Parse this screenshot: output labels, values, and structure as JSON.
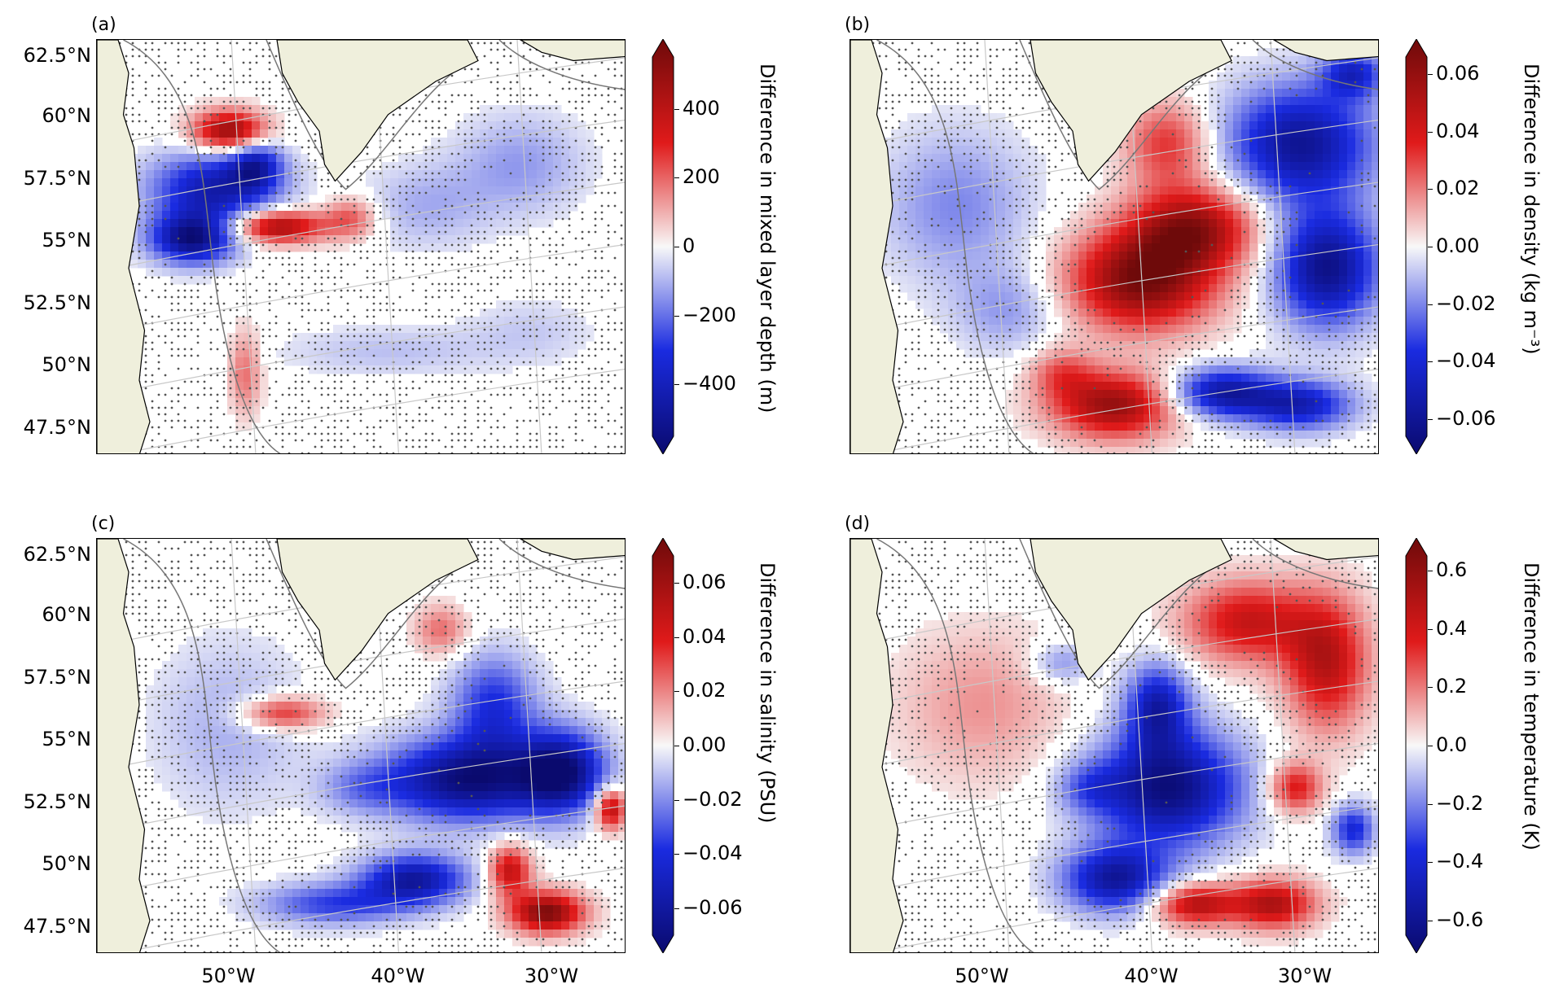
{
  "figure": {
    "lat_labels": [
      "62.5°N",
      "60°N",
      "57.5°N",
      "55°N",
      "52.5°N",
      "50°N",
      "47.5°N"
    ],
    "lon_labels": [
      "50°W",
      "40°W",
      "30°W"
    ],
    "colors": {
      "land": "#efefdc",
      "ocean": "#ffffff",
      "stipple": "#555555",
      "isobath": "#777777",
      "grid": "#c8c8c8",
      "coast": "#000000",
      "neg_max": "#0a0a6e",
      "neg_mid": "#1a2be0",
      "zero": "#f8f8f8",
      "pos_mid": "#e01a1a",
      "pos_max": "#6e0a0a"
    }
  },
  "panels": [
    {
      "id": "a",
      "label": "(a)",
      "colorbar": {
        "title": "Difference in mixed layer depth (m)",
        "ticks": [
          "400",
          "200",
          "0",
          "−200",
          "−400"
        ],
        "tick_values": [
          400,
          200,
          0,
          -200,
          -400
        ],
        "range": [
          -550,
          550
        ]
      },
      "show_lat": true,
      "show_lon": false
    },
    {
      "id": "b",
      "label": "(b)",
      "colorbar": {
        "title": "Difference in density (kg m⁻³)",
        "ticks": [
          "0.06",
          "0.04",
          "0.02",
          "0.00",
          "−0.02",
          "−0.04",
          "−0.06"
        ],
        "tick_values": [
          0.06,
          0.04,
          0.02,
          0.0,
          -0.02,
          -0.04,
          -0.06
        ],
        "range": [
          -0.066,
          0.066
        ]
      },
      "show_lat": false,
      "show_lon": false
    },
    {
      "id": "c",
      "label": "(c)",
      "colorbar": {
        "title": "Difference in salinity (PSU)",
        "ticks": [
          "0.06",
          "0.04",
          "0.02",
          "0.00",
          "−0.02",
          "−0.04",
          "−0.06"
        ],
        "tick_values": [
          0.06,
          0.04,
          0.02,
          0.0,
          -0.02,
          -0.04,
          -0.06
        ],
        "range": [
          -0.07,
          0.07
        ]
      },
      "show_lat": true,
      "show_lon": true
    },
    {
      "id": "d",
      "label": "(d)",
      "colorbar": {
        "title": "Difference in temperature (K)",
        "ticks": [
          "0.6",
          "0.4",
          "0.2",
          "0.0",
          "−0.2",
          "−0.4",
          "−0.6"
        ],
        "tick_values": [
          0.6,
          0.4,
          0.2,
          0.0,
          -0.2,
          -0.4,
          -0.6
        ],
        "range": [
          -0.65,
          0.65
        ]
      },
      "show_lat": false,
      "show_lon": true
    }
  ]
}
